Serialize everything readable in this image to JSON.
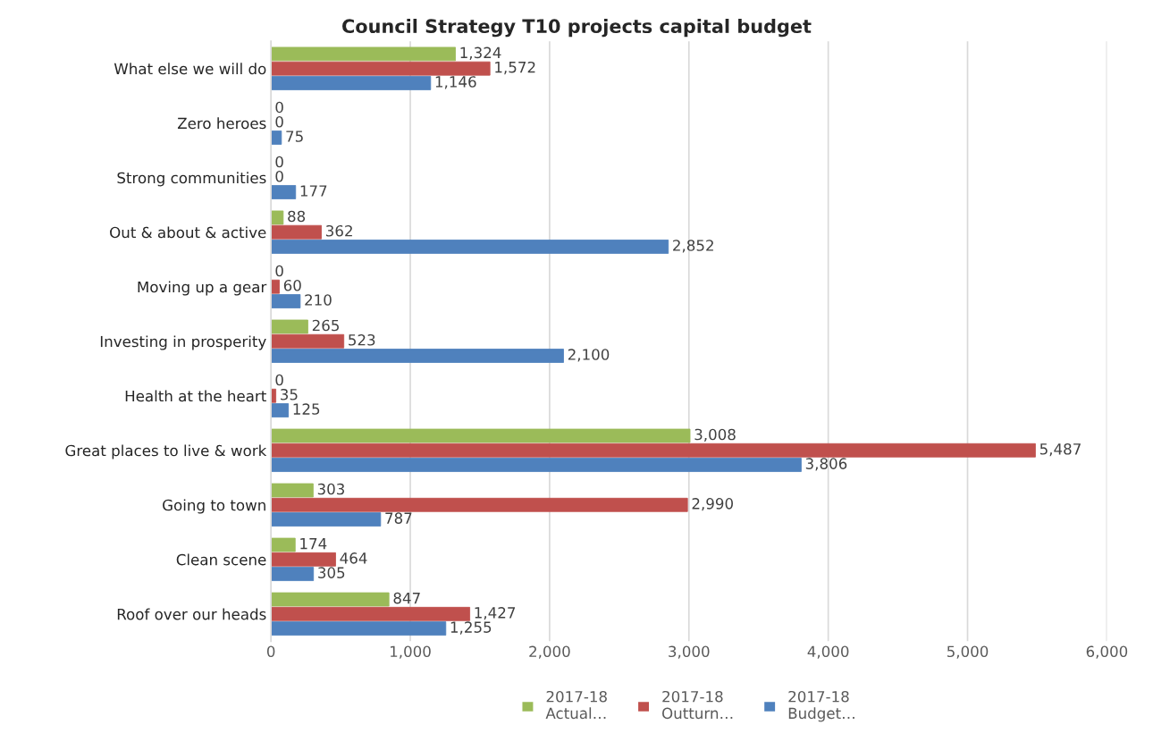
{
  "chart_data": {
    "type": "bar",
    "orientation": "horizontal",
    "title": "Council Strategy T10 projects capital budget",
    "categories": [
      "What else we will do",
      "Zero heroes",
      "Strong communities",
      "Out & about & active",
      "Moving up a gear",
      "Investing in prosperity",
      "Health at the heart",
      "Great places to live & work",
      "Going to town",
      "Clean scene",
      "Roof over our heads"
    ],
    "series": [
      {
        "name": "2017-18\nActual…",
        "color": "#9bbb59",
        "values": [
          1324,
          0,
          0,
          88,
          0,
          265,
          0,
          3008,
          303,
          174,
          847
        ],
        "value_labels": [
          "1,324",
          "0",
          "0",
          "88",
          "0",
          "265",
          "0",
          "3,008",
          "303",
          "174",
          "847"
        ]
      },
      {
        "name": "2017-18\nOutturn…",
        "color": "#c0504d",
        "values": [
          1572,
          0,
          0,
          362,
          60,
          523,
          35,
          5487,
          2990,
          464,
          1427
        ],
        "value_labels": [
          "1,572",
          "0",
          "0",
          "362",
          "60",
          "523",
          "35",
          "5,487",
          "2,990",
          "464",
          "1,427"
        ]
      },
      {
        "name": "2017-18\nBudget…",
        "color": "#4f81bd",
        "values": [
          1146,
          75,
          177,
          2852,
          210,
          2100,
          125,
          3806,
          787,
          305,
          1255
        ],
        "value_labels": [
          "1,146",
          "75",
          "177",
          "2,852",
          "210",
          "2,100",
          "125",
          "3,806",
          "787",
          "305",
          "1,255"
        ]
      }
    ],
    "xlim": [
      0,
      6000
    ],
    "xticks": [
      0,
      {
        "value": 1000,
        "label": "1,000"
      },
      {
        "value": 2000,
        "label": "2,000"
      },
      {
        "value": 3000,
        "label": "3,000"
      },
      {
        "value": 4000,
        "label": "4,000"
      },
      {
        "value": 5000,
        "label": "5,000"
      },
      {
        "value": 6000,
        "label": "6,000"
      }
    ],
    "grid": "x",
    "legend": "bottom"
  }
}
